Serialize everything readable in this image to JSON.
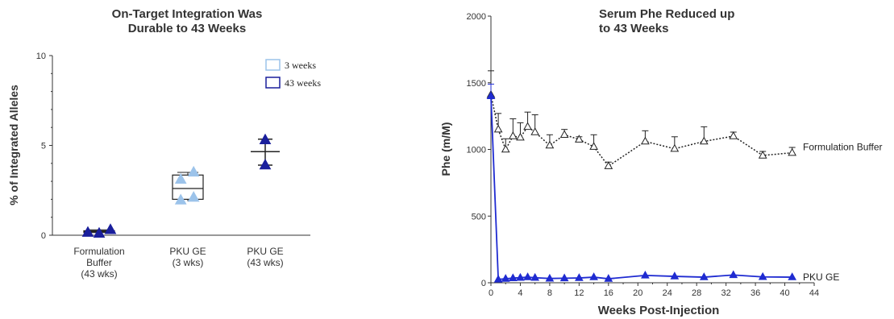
{
  "chart_data": [
    {
      "type": "scatter",
      "title_lines": [
        "On-Target Integration Was",
        "Durable to 43 Weeks"
      ],
      "ylabel": "% of Integrated Alleles",
      "ylim": [
        0,
        10
      ],
      "yticks": [
        "0",
        "5",
        "10"
      ],
      "categories": [
        {
          "lines": [
            "Formulation",
            "Buffer",
            "(43 wks)"
          ]
        },
        {
          "lines": [
            "PKU GE",
            "(3 wks)"
          ]
        },
        {
          "lines": [
            "PKU GE",
            "(43 wks)"
          ]
        }
      ],
      "legend": [
        {
          "label": "3 weeks",
          "color": "#9cc3ea"
        },
        {
          "label": "43 weeks",
          "color": "#1a1f9c"
        }
      ],
      "series": [
        {
          "name": "3 weeks",
          "color": "#9cc3ea",
          "category_index": 1,
          "points": [
            {
              "dx": -0.22,
              "y": 3.1
            },
            {
              "dx": 0.18,
              "y": 3.5
            },
            {
              "dx": -0.22,
              "y": 1.95
            },
            {
              "dx": 0.18,
              "y": 2.1
            }
          ]
        },
        {
          "name": "43 weeks",
          "color": "#1a1f9c",
          "category_index": [
            0,
            2
          ],
          "points_by_category": [
            [
              {
                "dx": -0.35,
                "y": 0.15
              },
              {
                "dx": 0.0,
                "y": 0.1
              },
              {
                "dx": 0.35,
                "y": 0.3
              }
            ],
            [
              {
                "dx": 0.0,
                "y": 5.3
              },
              {
                "dx": 0.0,
                "y": 3.9
              }
            ]
          ]
        }
      ],
      "summaries": [
        {
          "category_index": 0,
          "kind": "box",
          "low": 0.1,
          "q1": 0.15,
          "median": 0.2,
          "q3": 0.25,
          "high": 0.3
        },
        {
          "category_index": 1,
          "kind": "box",
          "low": 1.9,
          "q1": 2.0,
          "median": 2.6,
          "q3": 3.35,
          "high": 3.5
        },
        {
          "category_index": 2,
          "kind": "meanbar",
          "mean": 4.65,
          "low": 3.9,
          "high": 5.35
        }
      ]
    },
    {
      "type": "line",
      "title_lines": [
        "Serum Phe Reduced up",
        "to 43 Weeks"
      ],
      "xlabel": "Weeks Post-Injection",
      "ylabel": "Phe (m/M)",
      "xlim": [
        0,
        44
      ],
      "ylim": [
        0,
        2000
      ],
      "xticks": [
        "0",
        "4",
        "8",
        "12",
        "16",
        "20",
        "24",
        "28",
        "32",
        "36",
        "40",
        "44"
      ],
      "yticks": [
        "0",
        "500",
        "1000",
        "1500",
        "2000"
      ],
      "series": [
        {
          "name": "Formulation Buffer",
          "color": "#222222",
          "style": "dotted",
          "marker": "open-triangle",
          "x": [
            0,
            1,
            2,
            3,
            4,
            5,
            6,
            8,
            10,
            12,
            14,
            16,
            21,
            25,
            29,
            33,
            37,
            41
          ],
          "y": [
            1410,
            1150,
            1000,
            1100,
            1090,
            1170,
            1130,
            1030,
            1110,
            1075,
            1020,
            875,
            1060,
            1005,
            1060,
            1100,
            955,
            975
          ],
          "err_up": [
            180,
            120,
            80,
            130,
            110,
            110,
            130,
            80,
            40,
            20,
            90,
            30,
            80,
            90,
            110,
            30,
            30,
            40
          ]
        },
        {
          "name": "PKU GE",
          "color": "#1f2bd1",
          "style": "solid",
          "marker": "filled-triangle",
          "x": [
            0,
            1,
            2,
            3,
            4,
            5,
            6,
            8,
            10,
            12,
            14,
            16,
            21,
            25,
            29,
            33,
            37,
            41
          ],
          "y": [
            1400,
            25,
            30,
            35,
            38,
            42,
            38,
            32,
            34,
            36,
            42,
            30,
            55,
            48,
            42,
            58,
            44,
            42
          ],
          "err_up": [
            90,
            5,
            5,
            5,
            5,
            5,
            5,
            5,
            5,
            5,
            5,
            5,
            5,
            5,
            5,
            5,
            5,
            5
          ]
        }
      ]
    }
  ]
}
